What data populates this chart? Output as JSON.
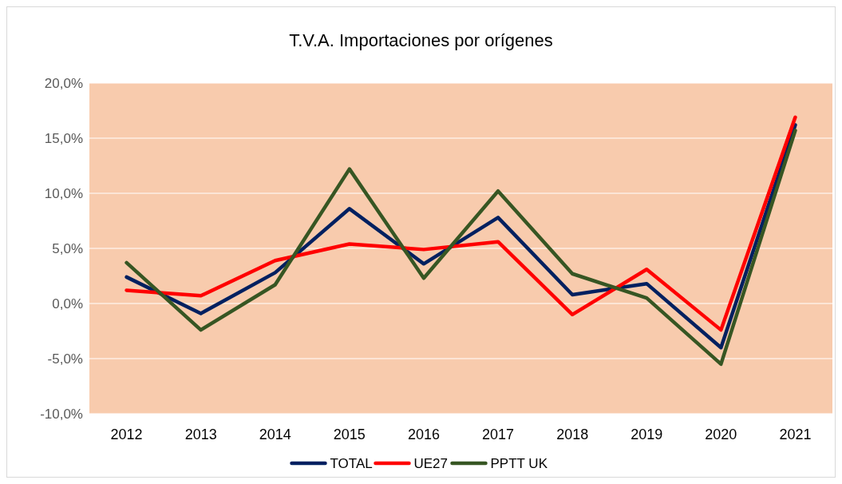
{
  "chart_data": {
    "type": "line",
    "title": "T.V.A. Importaciones por orígenes",
    "categories": [
      "2012",
      "2013",
      "2014",
      "2015",
      "2016",
      "2017",
      "2018",
      "2019",
      "2020",
      "2021"
    ],
    "series": [
      {
        "name": "TOTAL",
        "color": "#002060",
        "values": [
          2.4,
          -0.9,
          2.8,
          8.6,
          3.6,
          7.8,
          0.8,
          1.8,
          -4.0,
          16.2
        ]
      },
      {
        "name": "UE27",
        "color": "#ff0000",
        "values": [
          1.2,
          0.7,
          3.9,
          5.4,
          4.9,
          5.6,
          -1.0,
          3.1,
          -2.4,
          16.9
        ]
      },
      {
        "name": "PPTT UK",
        "color": "#375623",
        "values": [
          3.7,
          -2.4,
          1.7,
          12.2,
          2.3,
          10.2,
          2.7,
          0.5,
          -5.5,
          15.7
        ]
      }
    ],
    "ylim": [
      -10,
      20
    ],
    "yticks": [
      {
        "value": -10,
        "label": "-10,0%"
      },
      {
        "value": -5,
        "label": "-5,0%"
      },
      {
        "value": 0,
        "label": "0,0%"
      },
      {
        "value": 5,
        "label": "5,0%"
      },
      {
        "value": 10,
        "label": "10,0%"
      },
      {
        "value": 15,
        "label": "15,0%"
      },
      {
        "value": 20,
        "label": "20,0%"
      }
    ],
    "grid": "y",
    "legend": "bottom",
    "marker": "none",
    "line_style": "solid"
  }
}
